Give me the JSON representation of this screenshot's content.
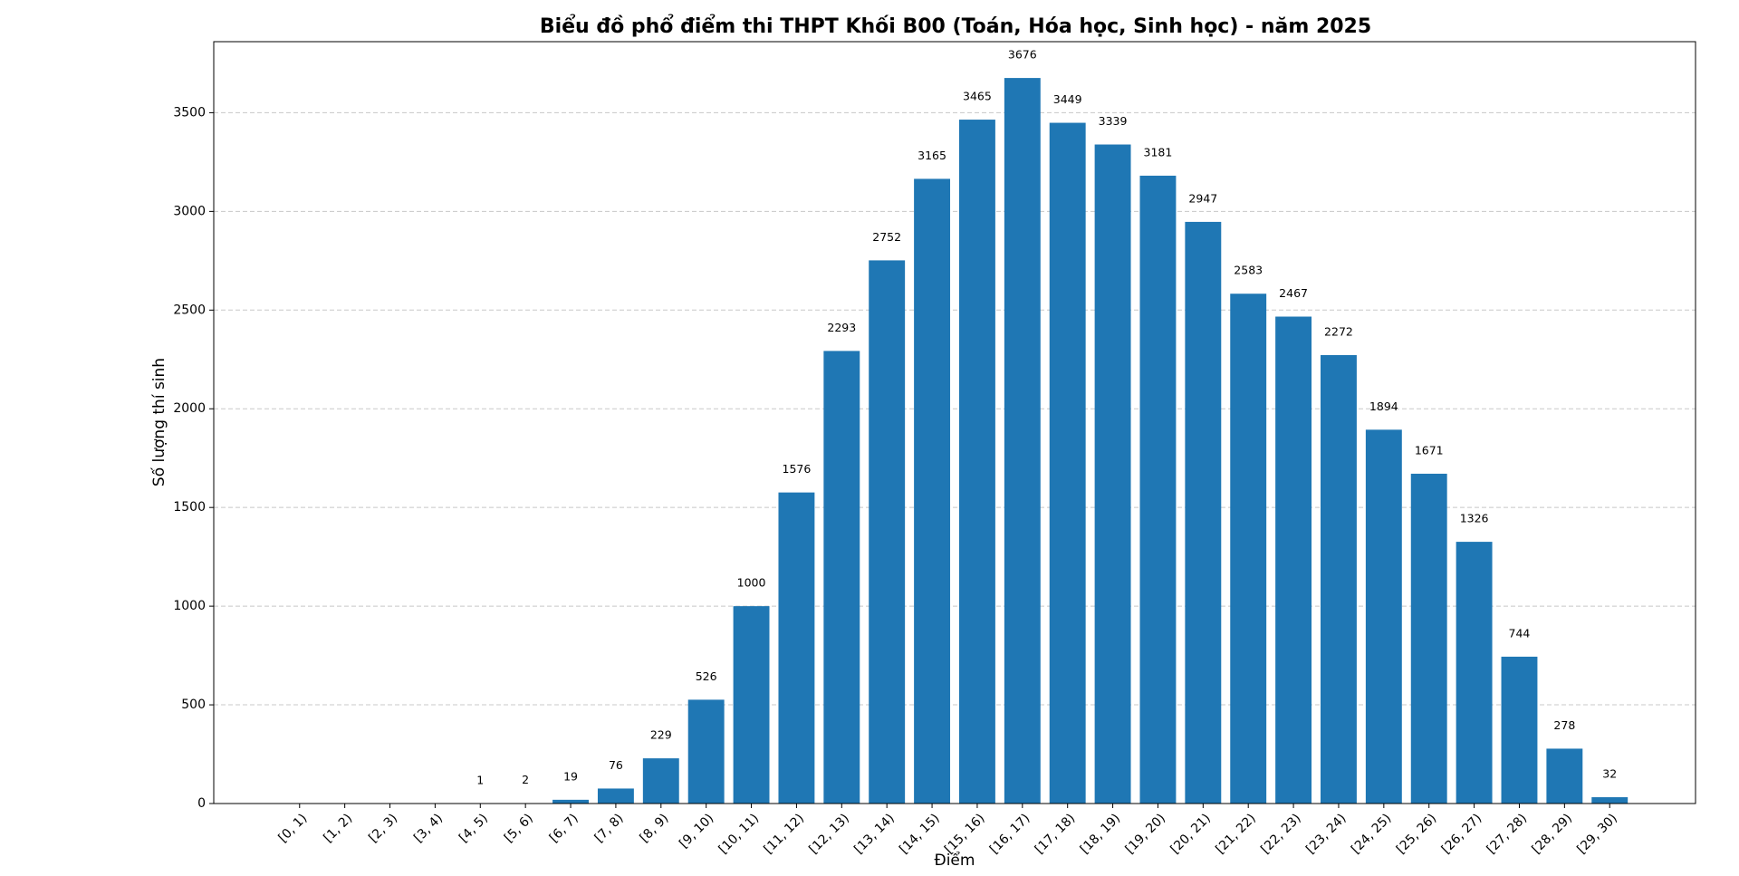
{
  "chart_data": {
    "type": "bar",
    "title": "Biểu đồ phổ điểm thi THPT Khối B00 (Toán, Hóa học, Sinh học) - năm 2025",
    "xlabel": "Điểm",
    "ylabel": "Số lượng thí sinh",
    "categories": [
      "[0, 1)",
      "[1, 2)",
      "[2, 3)",
      "[3, 4)",
      "[4, 5)",
      "[5, 6)",
      "[6, 7)",
      "[7, 8)",
      "[8, 9)",
      "[9, 10)",
      "[10, 11)",
      "[11, 12)",
      "[12, 13)",
      "[13, 14)",
      "[14, 15)",
      "[15, 16)",
      "[16, 17)",
      "[17, 18)",
      "[18, 19)",
      "[19, 20)",
      "[20, 21)",
      "[21, 22)",
      "[22, 23)",
      "[23, 24)",
      "[24, 25)",
      "[25, 26)",
      "[26, 27)",
      "[27, 28)",
      "[28, 29)",
      "[29, 30)"
    ],
    "values": [
      0,
      0,
      0,
      0,
      1,
      2,
      19,
      76,
      229,
      526,
      1000,
      1576,
      2293,
      2752,
      3165,
      3465,
      3676,
      3449,
      3339,
      3181,
      2947,
      2583,
      2467,
      2272,
      1894,
      1671,
      1326,
      744,
      278,
      32
    ],
    "color": "#1f77b4",
    "ylim": [
      0,
      3860
    ],
    "yticks": [
      0,
      500,
      1000,
      1500,
      2000,
      2500,
      3000,
      3500
    ],
    "grid": true
  }
}
